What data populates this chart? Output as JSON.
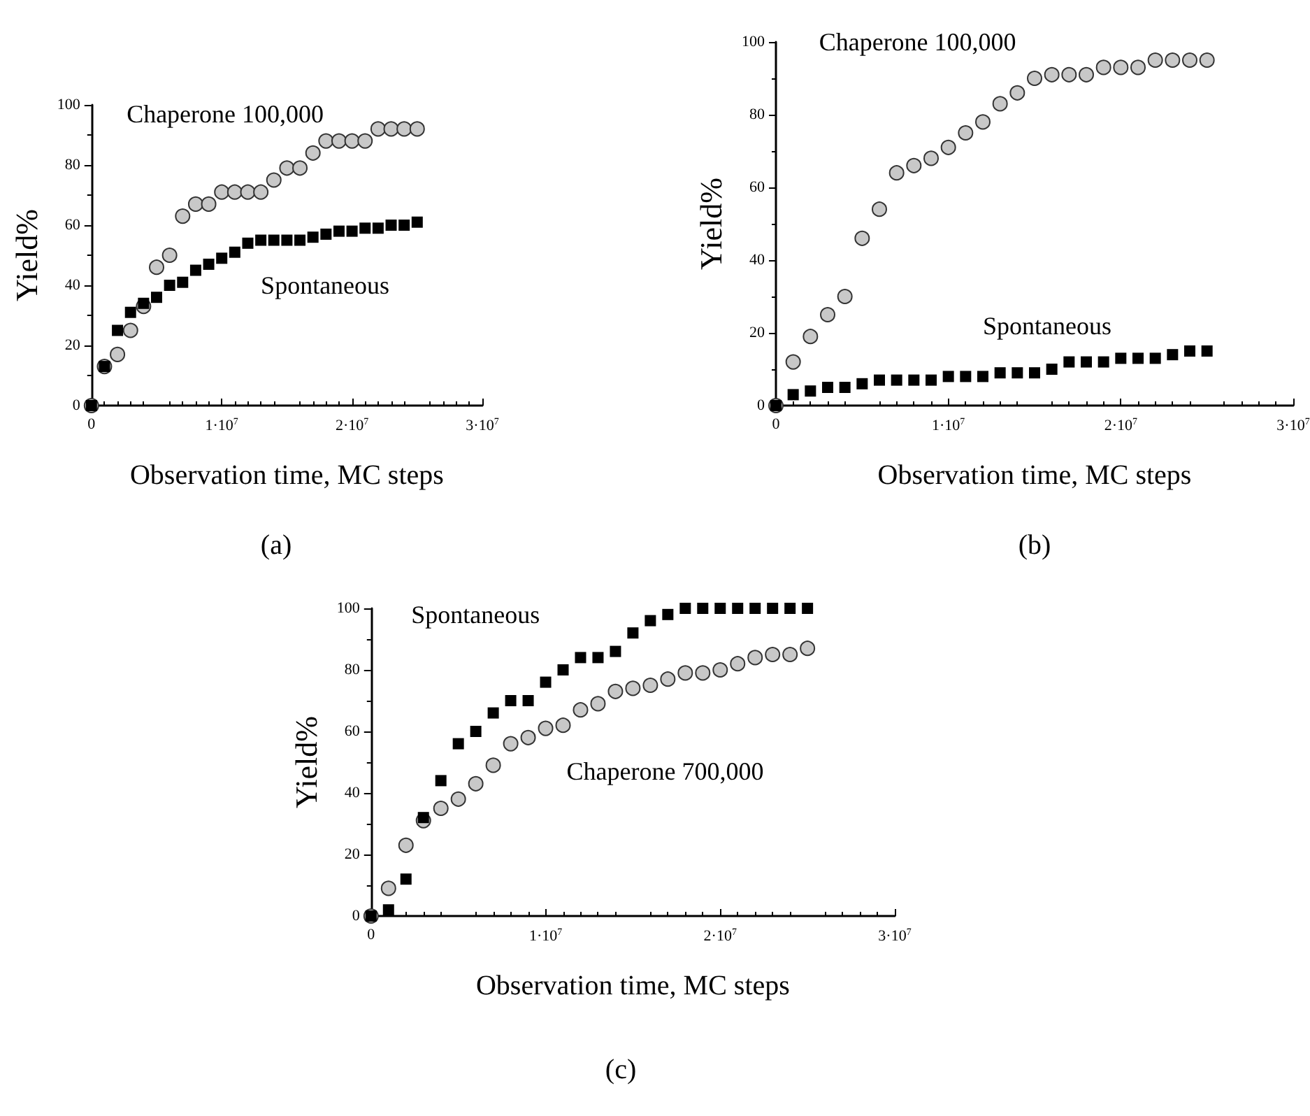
{
  "chart_data": [
    {
      "type": "scatter",
      "xlabel": "Observation time, MC steps",
      "ylabel": "Yield%",
      "annotations": [
        "(a)"
      ],
      "x": [
        0,
        1000000,
        2000000,
        3000000,
        4000000,
        5000000,
        6000000,
        7000000,
        8000000,
        9000000,
        10000000,
        11000000,
        12000000,
        13000000,
        14000000,
        15000000,
        16000000,
        17000000,
        18000000,
        19000000,
        20000000,
        21000000,
        22000000,
        23000000,
        24000000,
        25000000
      ],
      "series": [
        {
          "name": "Chaperone 100,000",
          "color": "#c8c8c8",
          "marker": "circle",
          "values": [
            0,
            13,
            17,
            25,
            33,
            46,
            50,
            63,
            67,
            67,
            71,
            71,
            71,
            71,
            75,
            79,
            79,
            84,
            88,
            88,
            88,
            88,
            92,
            92,
            92,
            92
          ]
        },
        {
          "name": "Spontaneous",
          "color": "#000000",
          "marker": "square",
          "values": [
            0,
            13,
            25,
            31,
            34,
            36,
            40,
            41,
            45,
            47,
            49,
            51,
            54,
            55,
            55,
            55,
            55,
            56,
            57,
            58,
            58,
            59,
            59,
            60,
            60,
            61
          ]
        }
      ],
      "xlim": [
        0,
        30000000
      ],
      "xticks": [
        {
          "value": 0,
          "label": "0"
        },
        {
          "value": 10000000,
          "label": "1·10$^{7}$"
        },
        {
          "value": 20000000,
          "label": "2·10$^{7}$"
        },
        {
          "value": 30000000,
          "label": "3·10$^{7}$"
        }
      ],
      "ylim": [
        0,
        100
      ],
      "yticks": [
        0,
        20,
        40,
        60,
        80,
        100
      ],
      "grid": false,
      "legend": false
    },
    {
      "type": "scatter",
      "xlabel": "Observation time, MC steps",
      "ylabel": "Yield%",
      "annotations": [
        "(b)"
      ],
      "x": [
        0,
        1000000,
        2000000,
        3000000,
        4000000,
        5000000,
        6000000,
        7000000,
        8000000,
        9000000,
        10000000,
        11000000,
        12000000,
        13000000,
        14000000,
        15000000,
        16000000,
        17000000,
        18000000,
        19000000,
        20000000,
        21000000,
        22000000,
        23000000,
        24000000,
        25000000
      ],
      "series": [
        {
          "name": "Chaperone 100,000",
          "color": "#c8c8c8",
          "marker": "circle",
          "values": [
            0,
            12,
            19,
            25,
            30,
            46,
            54,
            64,
            66,
            68,
            71,
            75,
            78,
            83,
            86,
            90,
            91,
            91,
            91,
            93,
            93,
            93,
            95,
            95,
            95,
            95
          ]
        },
        {
          "name": "Spontaneous",
          "color": "#000000",
          "marker": "square",
          "values": [
            0,
            3,
            4,
            5,
            5,
            6,
            7,
            7,
            7,
            7,
            8,
            8,
            8,
            9,
            9,
            9,
            10,
            12,
            12,
            12,
            13,
            13,
            13,
            14,
            15,
            15
          ]
        }
      ],
      "xlim": [
        0,
        30000000
      ],
      "xticks": [
        {
          "value": 0,
          "label": "0"
        },
        {
          "value": 10000000,
          "label": "1·10$^{7}$"
        },
        {
          "value": 20000000,
          "label": "2·10$^{7}$"
        },
        {
          "value": 30000000,
          "label": "3·10$^{7}$"
        }
      ],
      "ylim": [
        0,
        100
      ],
      "yticks": [
        0,
        20,
        40,
        60,
        80,
        100
      ],
      "grid": false,
      "legend": false
    },
    {
      "type": "scatter",
      "xlabel": "Observation time, MC steps",
      "ylabel": "Yield%",
      "annotations": [
        "(c)"
      ],
      "x": [
        0,
        1000000,
        2000000,
        3000000,
        4000000,
        5000000,
        6000000,
        7000000,
        8000000,
        9000000,
        10000000,
        11000000,
        12000000,
        13000000,
        14000000,
        15000000,
        16000000,
        17000000,
        18000000,
        19000000,
        20000000,
        21000000,
        22000000,
        23000000,
        24000000,
        25000000
      ],
      "series": [
        {
          "name": "Spontaneous",
          "color": "#000000",
          "marker": "square",
          "values": [
            0,
            2,
            12,
            32,
            44,
            56,
            60,
            66,
            70,
            70,
            76,
            80,
            84,
            84,
            86,
            92,
            96,
            98,
            100,
            100,
            100,
            100,
            100,
            100,
            100,
            100
          ]
        },
        {
          "name": "Chaperone 700,000",
          "color": "#c8c8c8",
          "marker": "circle",
          "values": [
            0,
            9,
            23,
            31,
            35,
            38,
            43,
            49,
            56,
            58,
            61,
            62,
            67,
            69,
            73,
            74,
            75,
            77,
            79,
            79,
            80,
            82,
            84,
            85,
            85,
            87
          ]
        }
      ],
      "xlim": [
        0,
        30000000
      ],
      "xticks": [
        {
          "value": 0,
          "label": "0"
        },
        {
          "value": 10000000,
          "label": "1·10$^{7}$"
        },
        {
          "value": 20000000,
          "label": "2·10$^{7}$"
        },
        {
          "value": 30000000,
          "label": "3·10$^{7}$"
        }
      ],
      "ylim": [
        0,
        100
      ],
      "yticks": [
        0,
        20,
        40,
        60,
        80,
        100
      ],
      "grid": false,
      "legend": false
    }
  ]
}
